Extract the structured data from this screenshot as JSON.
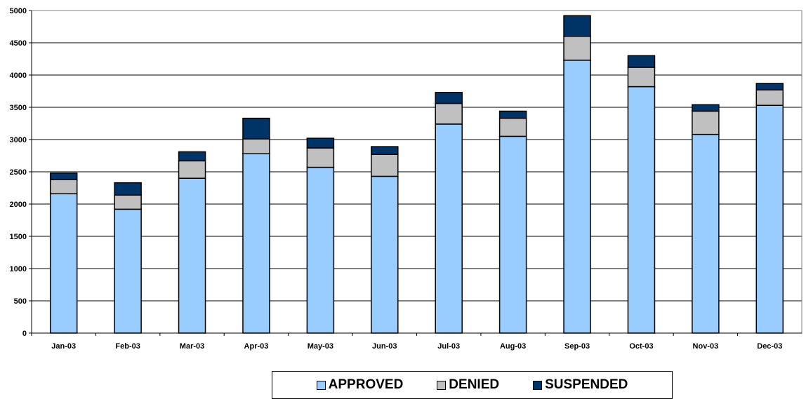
{
  "chart_data": {
    "type": "bar",
    "stacked": true,
    "categories": [
      "Jan-03",
      "Feb-03",
      "Mar-03",
      "Apr-03",
      "May-03",
      "Jun-03",
      "Jul-03",
      "Aug-03",
      "Sep-03",
      "Oct-03",
      "Nov-03",
      "Dec-03"
    ],
    "series": [
      {
        "name": "APPROVED",
        "color": "#99ccff",
        "values": [
          2160,
          1920,
          2400,
          2780,
          2570,
          2430,
          3240,
          3050,
          4230,
          3820,
          3080,
          3530
        ]
      },
      {
        "name": "DENIED",
        "color": "#c0c0c0",
        "values": [
          220,
          220,
          270,
          230,
          300,
          340,
          320,
          280,
          370,
          300,
          360,
          240
        ]
      },
      {
        "name": "SUSPENDED",
        "color": "#003366",
        "values": [
          100,
          190,
          140,
          320,
          150,
          120,
          170,
          110,
          320,
          180,
          100,
          100
        ]
      }
    ],
    "y_ticks": [
      "0",
      "500",
      "1000",
      "1500",
      "2000",
      "2500",
      "3000",
      "3500",
      "4000",
      "4500",
      "5000"
    ],
    "ylim": [
      0,
      5000
    ],
    "grid": true,
    "legend_position": "bottom",
    "title": "",
    "xlabel": "",
    "ylabel": ""
  }
}
